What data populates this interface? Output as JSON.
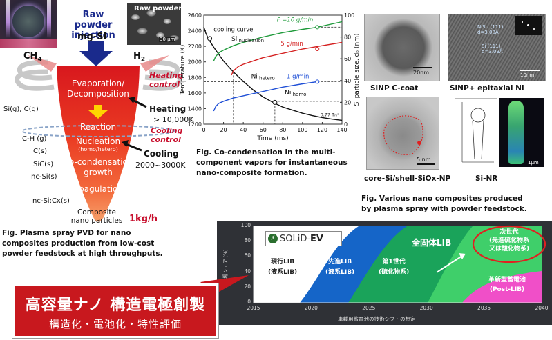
{
  "left_panel": {
    "raw_powder_photo_label": "Raw powder",
    "scale_bar": "30 µm",
    "injection_title": "Raw powder\ninjection",
    "feedstock": "mg-Si",
    "ch4": "CH",
    "ch4_sub": "4",
    "h2": "H",
    "h2_sub": "2",
    "heating_control": "Heating\ncontrol",
    "heating": "Heating",
    "heating_temp": "> 10,000K",
    "cooling_control": "Cooling\ncontrol",
    "cooling": "Cooling",
    "cooling_temp": "2000~3000K",
    "cone_stages": {
      "evaporation": "Evaporation/\nDecomposition",
      "reaction": "Reaction",
      "nucleation": "Nucleation",
      "nucleation_sub": "(homo/hetero)",
      "co_condensation": "Co-condensation\ngrowth",
      "coagulation": "Coagulation",
      "composite": "Composite\nnano particles"
    },
    "species": [
      "Si(g), C(g)",
      "C-H (g)",
      "C(s)",
      "SiC(s)",
      "nc-Si(s)",
      "nc-Si:Cx(s)"
    ],
    "throughput": "1kg/h",
    "caption": "Fig. Plasma spray PVD for nano\ncomposites production from low-cost\npowder feedstock at high throughputs."
  },
  "chart_data": {
    "type": "line",
    "xlabel": "Time (ms)",
    "ylabel": "Temperature (K)",
    "y2label": "Si particle size, dₚ (nm)",
    "xlim": [
      0,
      140
    ],
    "ylim": [
      1200,
      2600
    ],
    "y2lim": [
      0,
      100
    ],
    "x_ticks": [
      0,
      20,
      40,
      60,
      80,
      100,
      120,
      140
    ],
    "y_ticks": [
      1200,
      1400,
      1600,
      1800,
      2000,
      2200,
      2400,
      2600
    ],
    "y2_ticks": [
      0,
      20,
      40,
      60,
      80,
      100
    ],
    "series": [
      {
        "name": "cooling curve",
        "color": "#111111",
        "axis": "left",
        "x": [
          0,
          2,
          5,
          10,
          15,
          20,
          30,
          40,
          50,
          60,
          70,
          80,
          90,
          100,
          110,
          120,
          130,
          140
        ],
        "y": [
          2450,
          2370,
          2290,
          2190,
          2100,
          2010,
          1870,
          1750,
          1640,
          1550,
          1480,
          1420,
          1380,
          1340,
          1310,
          1285,
          1265,
          1250
        ]
      },
      {
        "name": "F =10 g/min",
        "color": "#1e9a3a",
        "axis": "right",
        "x": [
          10,
          12,
          16,
          20,
          30,
          40,
          60,
          80,
          100,
          115,
          120,
          140
        ],
        "y": [
          58,
          62,
          66,
          68,
          72,
          75,
          80,
          84,
          87,
          89,
          90,
          94
        ]
      },
      {
        "name": "5 g/min",
        "color": "#d42020",
        "axis": "right",
        "x": [
          28,
          30,
          35,
          40,
          50,
          60,
          80,
          100,
          120,
          140
        ],
        "y": [
          45,
          49,
          53,
          55,
          58,
          61,
          65,
          69,
          72,
          75
        ]
      },
      {
        "name": "1 g/min",
        "color": "#1f4fd6",
        "axis": "right",
        "x": [
          10,
          12,
          15,
          20,
          30,
          40,
          60,
          80,
          100,
          115
        ],
        "y": [
          12,
          16,
          19,
          21,
          24,
          26,
          30,
          34,
          37,
          39
        ]
      }
    ],
    "annotations": {
      "cooling_curve": "cooling curve",
      "si_nucleation": "Si",
      "si_nucleation_sub": "nucleation",
      "f10": "F =10 g/min",
      "f5": "5 g/min",
      "f1": "1 g/min",
      "ni_hetero": "Ni",
      "ni_hetero_sub": "hetero",
      "ni_homo": "Ni",
      "ni_homo_sub": "homo",
      "tc": "0.77 Tₘᶜ"
    },
    "caption": "Fig. Co-condensation in the multi-\ncomponent vapors for instantaneous\nnano-composite formation."
  },
  "right_panel": {
    "tem_labels": [
      "SiNP C-coat",
      "SiNP+ epitaxial Ni",
      "core-Si/shell-SiOx-NP",
      "Si-NR"
    ],
    "scale_bars": [
      "20nm",
      "10nm",
      "5 nm",
      "1μm"
    ],
    "lattice_ni": "NiSi₂ (111)\nd=3.08Å",
    "lattice_si": "Si (111)\nd=3.09Å",
    "caption": "Fig. Various nano composites produced\nby plasma spray with powder feedstock."
  },
  "bottom_chart": {
    "logo": "SOLiD-",
    "logo_bold": "EV",
    "ylabel": "市場シェア (%)",
    "xlabel": "車載用蓄電池の技術シフトの想定",
    "x_ticks": [
      "2015",
      "2020",
      "2025",
      "2030",
      "2035",
      "2040"
    ],
    "y_ticks": [
      "0",
      "20",
      "40",
      "60",
      "80",
      "100"
    ],
    "regions": [
      {
        "label": "現行LIB\n(液系LIB)",
        "color": "#ffffff"
      },
      {
        "label": "先進LIB\n(液系LIB)",
        "color": "#1565c8"
      },
      {
        "label": "第1世代\n(硫化物系)",
        "color": "#1aa35a"
      },
      {
        "label": "次世代\n(先進硫化物系\n又は酸化物系)",
        "color": "#3fcf6a"
      },
      {
        "label": "革新型蓄電池\n(Post-LIB)",
        "color": "#f04fc8"
      }
    ],
    "all_solid_label": "全固体LIB"
  },
  "banner": {
    "main": "高容量ナノ 構造電極創製",
    "sub": "構造化・電池化・特性評価",
    "color": "#c8181e"
  }
}
